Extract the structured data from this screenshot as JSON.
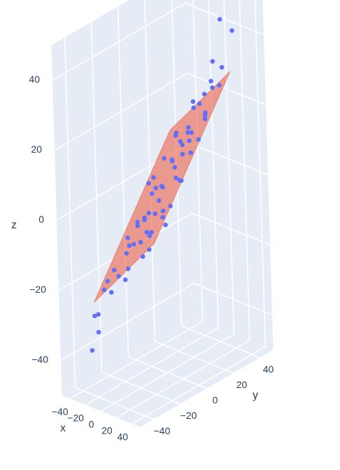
{
  "chart_data": {
    "type": "scatter3d",
    "x_label": "x",
    "y_label": "y",
    "z_label": "z",
    "xlim": [
      -50,
      50
    ],
    "ylim": [
      -50,
      50
    ],
    "zlim": [
      -50,
      50
    ],
    "xticks": [
      {
        "value": -40,
        "label": "−40"
      },
      {
        "value": -20,
        "label": "−20"
      },
      0,
      20,
      40
    ],
    "yticks": [
      {
        "value": -40,
        "label": "−40"
      },
      {
        "value": -20,
        "label": "−20"
      },
      0,
      20,
      40
    ],
    "zticks": [
      {
        "value": -40,
        "label": "−40"
      },
      {
        "value": -20,
        "label": "−20"
      },
      0,
      20,
      40
    ],
    "grid": true,
    "series": [
      {
        "color": "#636efa",
        "x": [
          -35,
          -30,
          -28,
          -25,
          -22,
          -20,
          -18,
          -15,
          -12,
          -10,
          -8,
          -5,
          -3,
          0,
          2,
          4,
          6,
          8,
          10,
          12,
          14,
          16,
          18,
          20,
          22,
          24,
          26,
          28,
          30,
          32,
          34,
          36,
          38,
          -38,
          -33,
          -27,
          -24,
          -17,
          -13,
          -7,
          -2,
          3,
          7,
          11,
          15,
          19,
          23,
          27,
          31,
          35,
          -36,
          -19,
          -9,
          5,
          13,
          25,
          33,
          -31,
          1,
          17,
          -26,
          9,
          21,
          -14,
          37,
          -4,
          20,
          30,
          -30,
          -35
        ],
        "y": [
          -25,
          -20,
          10,
          -28,
          5,
          -15,
          22,
          -5,
          15,
          -22,
          0,
          28,
          -12,
          8,
          -28,
          18,
          -6,
          25,
          -18,
          3,
          -25,
          12,
          -10,
          28,
          -2,
          20,
          -15,
          6,
          -28,
          15,
          -5,
          24,
          -20,
          12,
          0,
          -10,
          25,
          -30,
          8,
          -18,
          22,
          -2,
          12,
          -12,
          30,
          5,
          -22,
          18,
          -12,
          8,
          -32,
          -8,
          30,
          -32,
          26,
          -30,
          28,
          20,
          14,
          -20,
          -35,
          35,
          11,
          -26,
          -8,
          -8,
          35,
          38,
          -38,
          -30
        ],
        "z": [
          -24,
          -19,
          1,
          -20,
          -2,
          -10,
          12,
          -6,
          6,
          -12,
          2,
          19,
          -4,
          9,
          -14,
          15,
          1,
          22,
          -5,
          9,
          -6,
          15,
          0,
          27,
          8,
          22,
          0,
          14,
          -6,
          22,
          9,
          30,
          0,
          -2,
          -10,
          -14,
          10,
          -22,
          0,
          -10,
          15,
          4,
          13,
          -1,
          28,
          13,
          -3,
          22,
          3,
          18,
          -30,
          -8,
          20,
          -16,
          25,
          -8,
          34,
          4,
          13,
          -5,
          -28,
          32,
          18,
          -18,
          10,
          -3,
          45,
          42,
          -38,
          -35
        ]
      }
    ],
    "surface": {
      "color": "#ef553b",
      "opacity": 0.55,
      "x": [
        -40,
        40,
        40,
        -40
      ],
      "y": [
        -30,
        -30,
        30,
        30
      ],
      "z": [
        -27,
        -3,
        33,
        9
      ]
    }
  }
}
